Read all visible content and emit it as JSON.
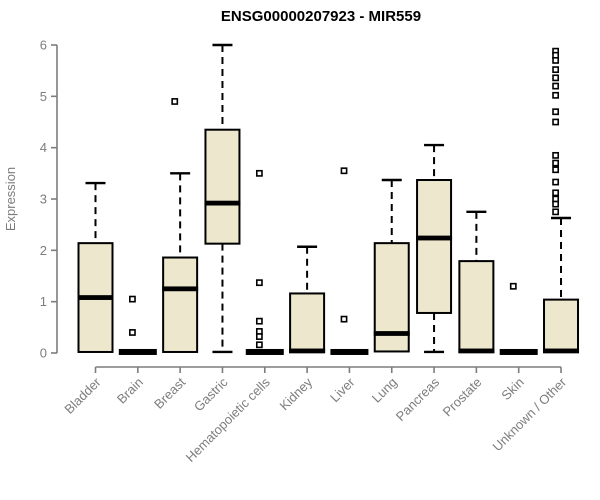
{
  "chart_data": {
    "type": "boxplot",
    "title": "ENSG00000207923 - MIR559",
    "ylabel": "Expression",
    "xlabel": "",
    "ylim": [
      0,
      6
    ],
    "yticks": [
      0,
      1,
      2,
      3,
      4,
      5,
      6
    ],
    "grid": false,
    "legend": false,
    "colors": {
      "box_fill": "#ECE7CD",
      "box_stroke": "#000000",
      "median": "#000000",
      "axis": "#7d7d7d",
      "axis_text": "#7d7d7d",
      "title_color": "#000000",
      "background": "#ffffff"
    },
    "categories": [
      "Bladder",
      "Brain",
      "Breast",
      "Gastric",
      "Hematopoietic cells",
      "Kidney",
      "Liver",
      "Lung",
      "Pancreas",
      "Prostate",
      "Skin",
      "Unknown / Other"
    ],
    "series": [
      {
        "name": "Bladder",
        "whisker_low": 0.02,
        "q1": 0.02,
        "median": 1.08,
        "q3": 2.14,
        "whisker_high": 3.31,
        "outliers": []
      },
      {
        "name": "Brain",
        "whisker_low": 0.02,
        "q1": 0.02,
        "median": 0.02,
        "q3": 0.02,
        "whisker_high": 0.02,
        "outliers": [
          1.05,
          0.4
        ]
      },
      {
        "name": "Breast",
        "whisker_low": 0.02,
        "q1": 0.02,
        "median": 1.25,
        "q3": 1.86,
        "whisker_high": 3.5,
        "outliers": [
          4.9
        ]
      },
      {
        "name": "Gastric",
        "whisker_low": 0.02,
        "q1": 2.13,
        "median": 2.92,
        "q3": 4.35,
        "whisker_high": 6.0,
        "outliers": []
      },
      {
        "name": "Hematopoietic cells",
        "whisker_low": 0.02,
        "q1": 0.02,
        "median": 0.02,
        "q3": 0.02,
        "whisker_high": 0.02,
        "outliers": [
          3.5,
          1.37,
          0.62,
          0.42,
          0.32,
          0.16
        ]
      },
      {
        "name": "Kidney",
        "whisker_low": 0.02,
        "q1": 0.02,
        "median": 0.04,
        "q3": 1.16,
        "whisker_high": 2.07,
        "outliers": []
      },
      {
        "name": "Liver",
        "whisker_low": 0.02,
        "q1": 0.02,
        "median": 0.02,
        "q3": 0.02,
        "whisker_high": 0.02,
        "outliers": [
          3.55,
          0.66
        ]
      },
      {
        "name": "Lung",
        "whisker_low": 0.02,
        "q1": 0.03,
        "median": 0.38,
        "q3": 2.14,
        "whisker_high": 3.37,
        "outliers": []
      },
      {
        "name": "Pancreas",
        "whisker_low": 0.02,
        "q1": 0.78,
        "median": 2.24,
        "q3": 3.37,
        "whisker_high": 4.05,
        "outliers": []
      },
      {
        "name": "Prostate",
        "whisker_low": 0.02,
        "q1": 0.02,
        "median": 0.04,
        "q3": 1.79,
        "whisker_high": 2.75,
        "outliers": []
      },
      {
        "name": "Skin",
        "whisker_low": 0.02,
        "q1": 0.02,
        "median": 0.02,
        "q3": 0.02,
        "whisker_high": 0.02,
        "outliers": [
          1.3
        ]
      },
      {
        "name": "Unknown / Other",
        "whisker_low": 0.02,
        "q1": 0.02,
        "median": 0.04,
        "q3": 1.04,
        "whisker_high": 2.63,
        "outliers": [
          5.88,
          5.8,
          5.7,
          5.52,
          5.36,
          5.2,
          5.02,
          4.7,
          4.5,
          3.85,
          3.7,
          3.57,
          3.33,
          3.12,
          3.0,
          2.9,
          2.75
        ]
      }
    ]
  }
}
